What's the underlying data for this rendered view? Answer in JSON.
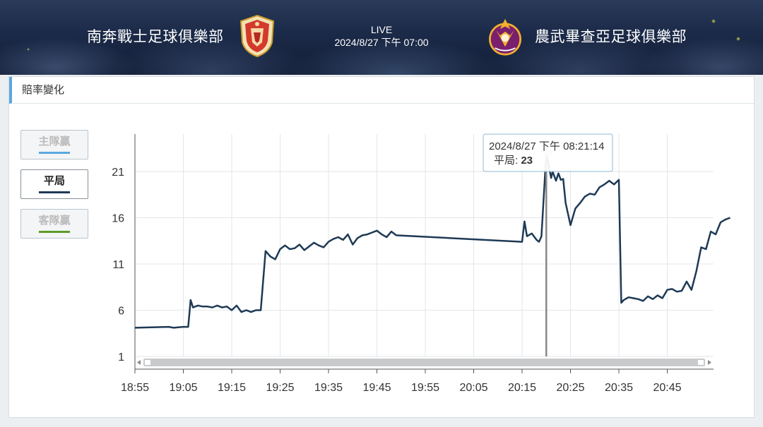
{
  "header": {
    "home_team": "南奔戰士足球俱樂部",
    "away_team": "農武畢查亞足球俱樂部",
    "status": "LIVE",
    "kickoff": "2024/8/27 下午 07:00"
  },
  "panel": {
    "title": "賠率變化"
  },
  "toggles": [
    {
      "label": "主隊贏",
      "active": false,
      "color": "#5aa7de"
    },
    {
      "label": "平局",
      "active": true,
      "color": "#1e3a55"
    },
    {
      "label": "客隊贏",
      "active": false,
      "color": "#5b9b2a"
    }
  ],
  "tooltip": {
    "time": "2024/8/27 下午 08:21:14",
    "series": "平局",
    "value": "23"
  },
  "chart_data": {
    "type": "line",
    "title": "",
    "xlabel": "",
    "ylabel": "",
    "x_ticks": [
      "18:55",
      "19:05",
      "19:15",
      "19:25",
      "19:35",
      "19:45",
      "19:55",
      "20:05",
      "20:15",
      "20:25",
      "20:35",
      "20:45"
    ],
    "y_ticks": [
      1,
      6,
      11,
      16,
      21
    ],
    "ylim": [
      1,
      23.5
    ],
    "grid": true,
    "series": [
      {
        "name": "平局",
        "color": "#1e3a55",
        "x": [
          "18:55",
          "19:02",
          "19:03",
          "19:05",
          "19:06",
          "19:06.5",
          "19:07",
          "19:08",
          "19:09",
          "19:10",
          "19:11",
          "19:12",
          "19:13",
          "19:14",
          "19:15",
          "19:16",
          "19:17",
          "19:18",
          "19:19",
          "19:20",
          "19:21",
          "19:22",
          "19:23",
          "19:24",
          "19:25",
          "19:26",
          "19:27",
          "19:28",
          "19:29",
          "19:30",
          "19:31",
          "19:32",
          "19:33",
          "19:34",
          "19:35",
          "19:36",
          "19:37",
          "19:38",
          "19:39",
          "19:40",
          "19:41",
          "19:42",
          "19:43",
          "19:44",
          "19:45",
          "19:46",
          "19:47",
          "19:48",
          "19:49",
          "20:15",
          "20:15.5",
          "20:16",
          "20:17",
          "20:18",
          "20:18.5",
          "20:19",
          "20:20",
          "20:21",
          "20:21.3",
          "20:22",
          "20:22.5",
          "20:23",
          "20:23.5",
          "20:24",
          "20:25",
          "20:26",
          "20:27",
          "20:28",
          "20:29",
          "20:30",
          "20:31",
          "20:32",
          "20:33",
          "20:34",
          "20:35",
          "20:35.5",
          "20:36",
          "20:37",
          "20:38",
          "20:39",
          "20:40",
          "20:41",
          "20:42",
          "20:43",
          "20:44",
          "20:45",
          "20:46",
          "20:47",
          "20:48",
          "20:49",
          "20:50",
          "20:51",
          "20:52",
          "20:53",
          "20:54",
          "20:55",
          "20:56",
          "20:57",
          "20:58"
        ],
        "y": [
          4.1,
          4.2,
          4.1,
          4.2,
          4.2,
          7.1,
          6.3,
          6.5,
          6.4,
          6.4,
          6.3,
          6.5,
          6.3,
          6.4,
          6.0,
          6.5,
          5.8,
          6.0,
          5.8,
          6.0,
          6.0,
          12.4,
          11.8,
          11.5,
          12.6,
          13.0,
          12.6,
          12.7,
          13.1,
          12.5,
          12.9,
          13.3,
          13.0,
          12.8,
          13.4,
          13.7,
          13.9,
          13.6,
          14.2,
          13.1,
          13.8,
          14.1,
          14.2,
          14.4,
          14.6,
          14.2,
          13.9,
          14.5,
          14.1,
          13.4,
          15.6,
          14.0,
          14.3,
          13.6,
          13.4,
          14.0,
          23.0,
          20.3,
          21.0,
          20.0,
          20.8,
          20.1,
          20.2,
          17.6,
          15.2,
          17.0,
          17.6,
          18.3,
          18.6,
          18.5,
          19.3,
          19.6,
          20.0,
          19.6,
          20.1,
          6.8,
          7.1,
          7.4,
          7.3,
          7.2,
          7.0,
          7.5,
          7.2,
          7.6,
          7.3,
          8.2,
          8.3,
          8.0,
          8.1,
          9.1,
          8.2,
          10.2,
          12.8,
          12.6,
          14.5,
          14.2,
          15.5,
          15.8,
          16.0
        ]
      }
    ]
  }
}
